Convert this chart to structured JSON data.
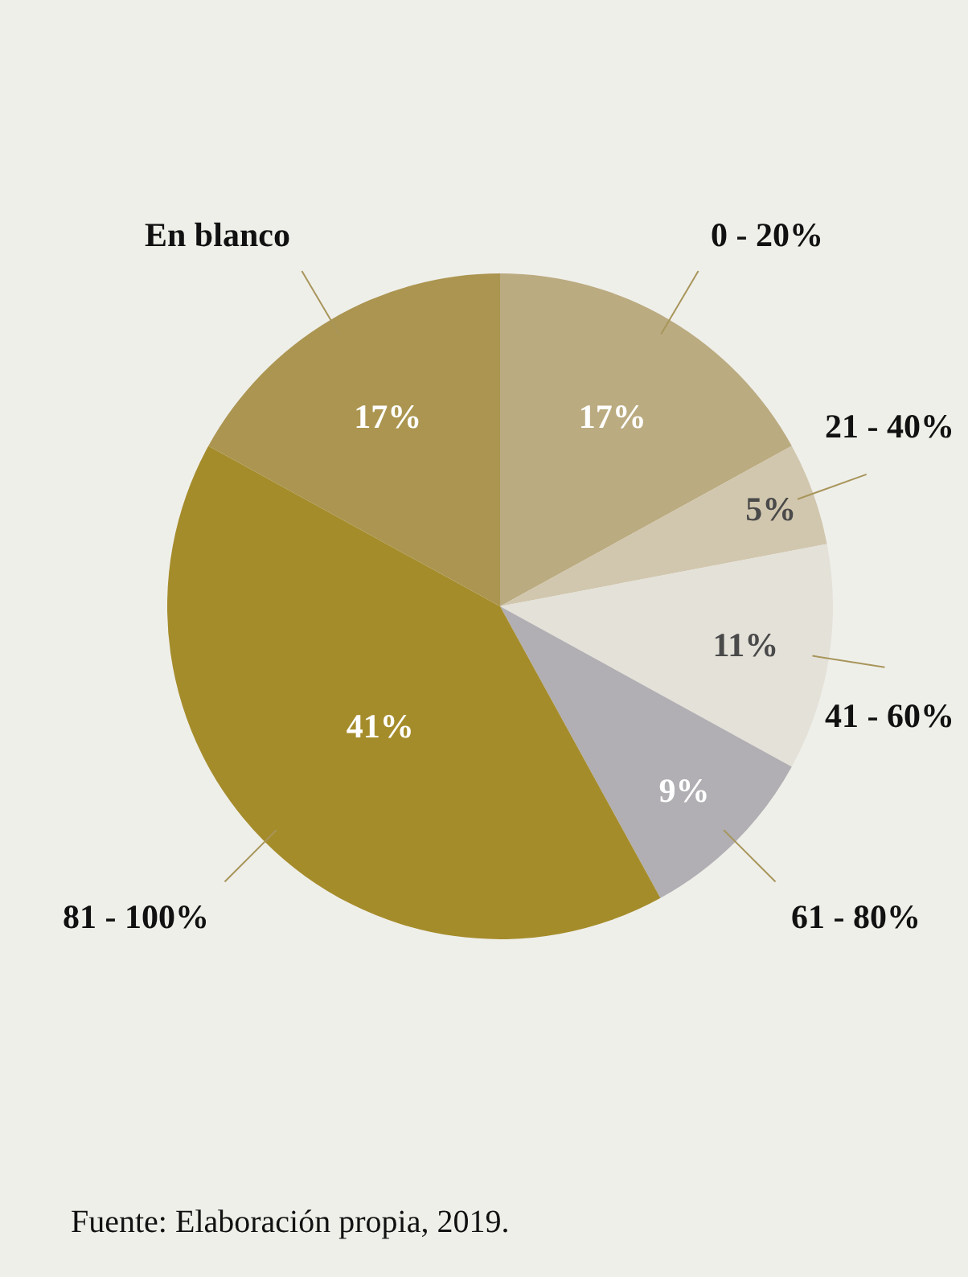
{
  "chart_data": {
    "type": "pie",
    "categories": [
      "0 - 20%",
      "21 - 40%",
      "41 - 60%",
      "61 - 80%",
      "81 - 100%",
      "En blanco"
    ],
    "values": [
      17,
      5,
      11,
      9,
      41,
      17
    ],
    "colors": [
      "#bbab80",
      "#d1c7ae",
      "#e4e1d9",
      "#b1afb3",
      "#a58c2b",
      "#ab9550"
    ],
    "value_labels": [
      "17%",
      "5%",
      "11%",
      "9%",
      "41%",
      "17%"
    ],
    "annotations": [
      "Fuente: Elaboración propia, 2019."
    ]
  }
}
